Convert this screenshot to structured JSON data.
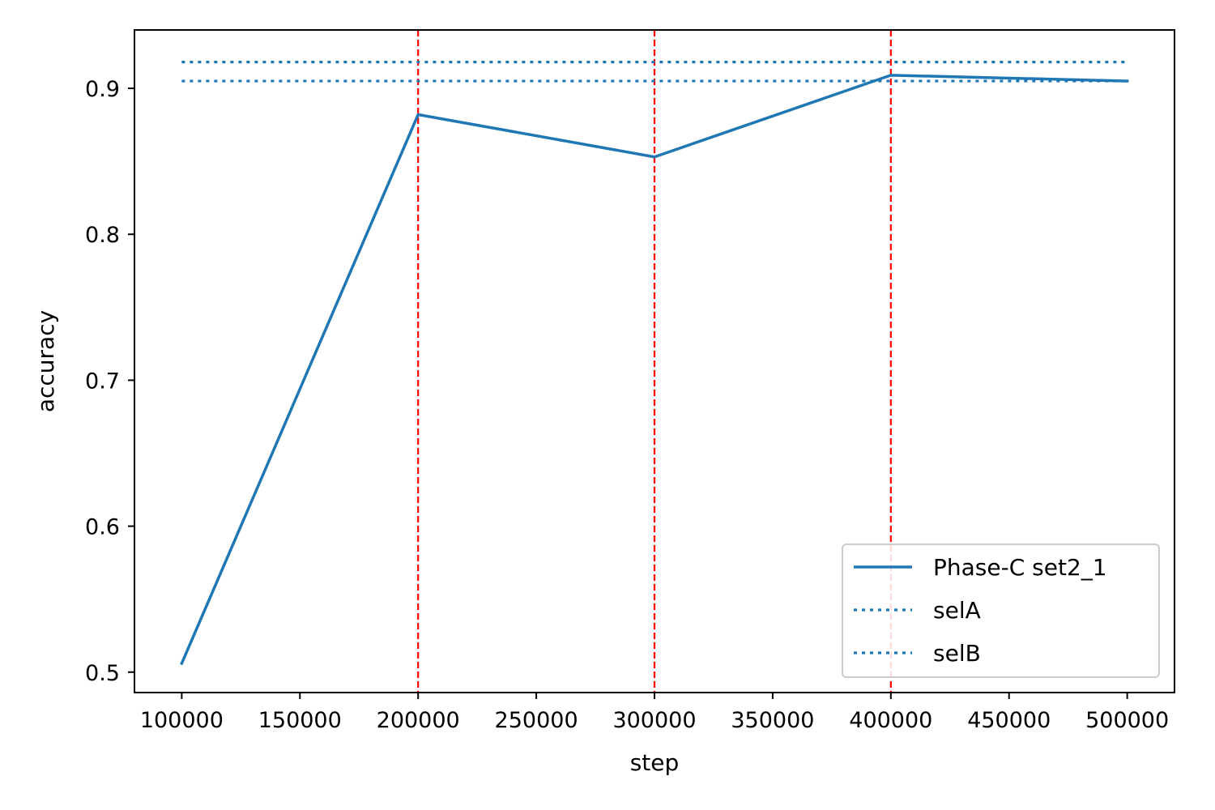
{
  "chart_data": {
    "type": "line",
    "title": "",
    "xlabel": "step",
    "ylabel": "accuracy",
    "xlim": [
      80000,
      520000
    ],
    "ylim": [
      0.486,
      0.94
    ],
    "xticks": [
      100000,
      150000,
      200000,
      250000,
      300000,
      350000,
      400000,
      450000,
      500000
    ],
    "yticks": [
      0.5,
      0.6,
      0.7,
      0.8,
      0.9
    ],
    "grid": false,
    "legend_position": "lower right",
    "series": [
      {
        "name": "Phase-C set2_1",
        "style": "solid",
        "color": "#1f77b4",
        "x": [
          100000,
          200000,
          300000,
          400000,
          500000
        ],
        "y": [
          0.506,
          0.882,
          0.853,
          0.909,
          0.905
        ]
      }
    ],
    "reference_lines": [
      {
        "name": "selA",
        "orientation": "horizontal",
        "value": 0.918,
        "x_range": [
          100000,
          500000
        ],
        "style": "dotted",
        "color": "#1f77b4"
      },
      {
        "name": "selB",
        "orientation": "horizontal",
        "value": 0.905,
        "x_range": [
          100000,
          500000
        ],
        "style": "dotted",
        "color": "#1f77b4"
      },
      {
        "orientation": "vertical",
        "value": 200000,
        "style": "dashed",
        "color": "#ff0000"
      },
      {
        "orientation": "vertical",
        "value": 300000,
        "style": "dashed",
        "color": "#ff0000"
      },
      {
        "orientation": "vertical",
        "value": 400000,
        "style": "dashed",
        "color": "#ff0000"
      }
    ]
  }
}
